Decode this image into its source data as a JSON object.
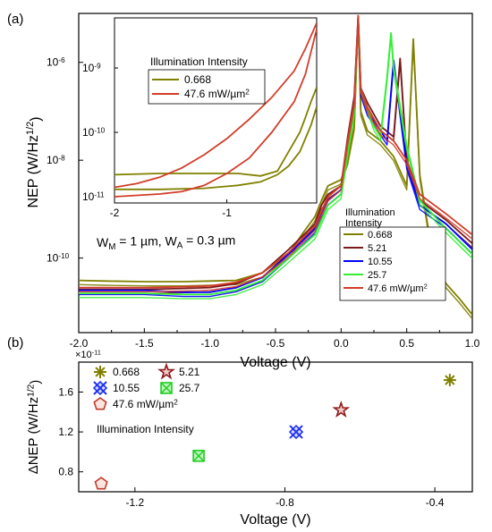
{
  "chart_data": [
    {
      "panel": "(a)",
      "type": "line",
      "xlabel": "Voltage (V)",
      "ylabel": "NEP (W/Hz",
      "ylabel_sup": "1/2",
      "ylabel_close": ")",
      "yscale": "log",
      "xlim": [
        -2.0,
        1.0
      ],
      "ylim": [
        3e-12,
        1e-05
      ],
      "xticks": [
        {
          "v": -2.0,
          "label": "-2.0"
        },
        {
          "v": -1.5,
          "label": "-1.5"
        },
        {
          "v": -1.0,
          "label": "-1.0"
        },
        {
          "v": -0.5,
          "label": "-0.5"
        },
        {
          "v": 0.0,
          "label": "0.0"
        },
        {
          "v": 0.5,
          "label": "0.5"
        },
        {
          "v": 1.0,
          "label": "1.0"
        }
      ],
      "yticks": [
        {
          "v": 1e-10,
          "label": "10",
          "sup": "-10"
        },
        {
          "v": 1e-08,
          "label": "10",
          "sup": "-8"
        },
        {
          "v": 1e-06,
          "label": "10",
          "sup": "-6"
        }
      ],
      "annotation": "W",
      "annotation_parts": [
        "W",
        "M",
        " = 1 µm, W",
        "A",
        " = 0.3 µm"
      ],
      "legend": {
        "title": [
          "Illumination",
          "Intensity"
        ],
        "entries": [
          "0.668",
          "5.21",
          "10.55",
          "25.7",
          "47.6 mW/µm"
        ],
        "last_sup": "2",
        "position": "bottom-right"
      },
      "series": [
        {
          "name": "0.668",
          "color": "#808000",
          "x": [
            -2.0,
            -1.8,
            -1.5,
            -1.2,
            -1.0,
            -0.8,
            -0.6,
            -0.4,
            -0.3,
            -0.2,
            -0.15,
            -0.1,
            0.0,
            0.05,
            0.1,
            0.13,
            0.15,
            0.2,
            0.3,
            0.4,
            0.5,
            0.55,
            0.6,
            0.7,
            0.8,
            0.9,
            1.0
          ],
          "y": [
            3.5e-11,
            3.4e-11,
            3.3e-11,
            3.3e-11,
            3.4e-11,
            3.5e-11,
            5e-11,
            1.2e-10,
            3e-10,
            7e-10,
            1.5e-09,
            3e-09,
            4e-09,
            1e-08,
            5e-08,
            8e-06,
            1e-07,
            4e-08,
            2.5e-08,
            1.2e-08,
            3e-09,
            3e-06,
            5e-09,
            1e-10,
            3e-11,
            1.5e-11,
            7e-12
          ]
        },
        {
          "name": "5.21",
          "color": "#7b1a1a",
          "x": [
            -2.0,
            -1.8,
            -1.5,
            -1.2,
            -1.0,
            -0.8,
            -0.6,
            -0.4,
            -0.2,
            -0.15,
            -0.1,
            0.0,
            0.05,
            0.1,
            0.13,
            0.15,
            0.2,
            0.3,
            0.4,
            0.45,
            0.5,
            0.6,
            0.8,
            1.0
          ],
          "y": [
            2.3e-11,
            2.3e-11,
            2.3e-11,
            2.4e-11,
            2.5e-11,
            3e-11,
            5e-11,
            1.5e-10,
            5e-10,
            1.2e-09,
            2e-09,
            3e-09,
            3e-08,
            2e-07,
            9e-06,
            3e-07,
            1.5e-07,
            5e-08,
            3e-08,
            1.2e-06,
            1e-08,
            1.5e-09,
            6e-10,
            2e-10
          ]
        },
        {
          "name": "10.55",
          "color": "#0000ff",
          "x": [
            -2.0,
            -1.8,
            -1.5,
            -1.2,
            -1.0,
            -0.8,
            -0.6,
            -0.4,
            -0.2,
            -0.15,
            -0.1,
            0.0,
            0.05,
            0.1,
            0.13,
            0.15,
            0.2,
            0.3,
            0.35,
            0.4,
            0.5,
            0.6,
            0.8,
            1.0
          ],
          "y": [
            2.2e-11,
            2.2e-11,
            2.2e-11,
            2e-11,
            2e-11,
            2.5e-11,
            4e-11,
            1.2e-10,
            4e-10,
            8e-10,
            1.5e-09,
            2.5e-09,
            2e-08,
            1.5e-07,
            8e-06,
            2.5e-07,
            1e-07,
            4e-08,
            2.5e-08,
            1.1e-06,
            8e-09,
            1.2e-09,
            5e-10,
            1.5e-10
          ]
        },
        {
          "name": "25.7",
          "color": "#33ee33",
          "x": [
            -2.0,
            -1.8,
            -1.5,
            -1.2,
            -1.0,
            -0.8,
            -0.6,
            -0.4,
            -0.2,
            -0.15,
            -0.1,
            0.0,
            0.05,
            0.1,
            0.13,
            0.15,
            0.2,
            0.25,
            0.3,
            0.35,
            0.38,
            0.4,
            0.5,
            0.6,
            0.8,
            1.0
          ],
          "y": [
            1.9e-11,
            1.9e-11,
            1.9e-11,
            1.8e-11,
            1.8e-11,
            2.2e-11,
            3.5e-11,
            1e-10,
            3e-10,
            6e-10,
            1.2e-09,
            2e-09,
            1.5e-08,
            1e-07,
            8e-06,
            3e-07,
            1.2e-07,
            5e-08,
            3e-08,
            5e-07,
            4e-06,
            8e-07,
            2e-08,
            1.5e-09,
            4e-10,
            1.2e-10
          ]
        },
        {
          "name": "47.6 mW/µm",
          "color": "#d23d2a",
          "x": [
            -2.0,
            -1.8,
            -1.5,
            -1.2,
            -1.0,
            -0.8,
            -0.6,
            -0.4,
            -0.2,
            -0.15,
            -0.1,
            0.0,
            0.05,
            0.1,
            0.13,
            0.15,
            0.2,
            0.3,
            0.4,
            0.5,
            0.6,
            0.8,
            1.0
          ],
          "y": [
            2.5e-11,
            2.5e-11,
            2.5e-11,
            2.6e-11,
            2.7e-11,
            3.2e-11,
            5e-11,
            1.3e-10,
            4.5e-10,
            9e-10,
            1.8e-09,
            3e-09,
            2.5e-08,
            1.5e-07,
            9e-06,
            3e-07,
            1.2e-07,
            4e-08,
            2.5e-08,
            1e-08,
            2e-09,
            8e-10,
            3e-10
          ]
        }
      ]
    },
    {
      "panel": "inset",
      "type": "line",
      "yscale": "log",
      "xlim": [
        -2.0,
        -0.2
      ],
      "ylim": [
        8e-12,
        6e-09
      ],
      "xticks": [
        {
          "v": -2,
          "label": "-2"
        },
        {
          "v": -1,
          "label": "-1"
        }
      ],
      "yticks": [
        {
          "v": 1e-11,
          "label": "10",
          "sup": "-11"
        },
        {
          "v": 1e-10,
          "label": "10",
          "sup": "-10"
        },
        {
          "v": 1e-09,
          "label": "10",
          "sup": "-9"
        }
      ],
      "legend": {
        "title": "Illumination Intensity",
        "entries": [
          "0.668",
          "47.6 mW/µm"
        ],
        "last_sup": "2",
        "position": "top-left"
      },
      "series": [
        {
          "name": "0.668",
          "color": "#808000",
          "x_lower": [
            -2.0,
            -1.6,
            -1.2,
            -0.9,
            -0.7,
            -0.55,
            -0.45,
            -0.35,
            -0.3,
            -0.25,
            -0.2
          ],
          "y_lower": [
            1.3e-11,
            1.3e-11,
            1.35e-11,
            1.5e-11,
            1.7e-11,
            2.2e-11,
            3e-11,
            5e-11,
            8e-11,
            1.3e-10,
            2.5e-10
          ],
          "x_upper": [
            -2.0,
            -1.6,
            -1.2,
            -0.9,
            -0.7,
            -0.55,
            -0.45,
            -0.35,
            -0.3,
            -0.25,
            -0.2
          ],
          "y_upper": [
            2.2e-11,
            2.3e-11,
            2.3e-11,
            2.3e-11,
            2.1e-11,
            2.5e-11,
            5e-11,
            1e-10,
            1.7e-10,
            3e-10,
            5e-10
          ]
        },
        {
          "name": "47.6 mW/µm",
          "color": "#d23d2a",
          "x_lower": [
            -2.0,
            -1.8,
            -1.6,
            -1.4,
            -1.2,
            -1.0,
            -0.8,
            -0.6,
            -0.4,
            -0.3,
            -0.2
          ],
          "y_lower": [
            1e-11,
            1.05e-11,
            1.1e-11,
            1.2e-11,
            1.5e-11,
            2.3e-11,
            4e-11,
            1e-10,
            3e-10,
            8e-10,
            4e-09
          ],
          "x_upper": [
            -2.0,
            -1.8,
            -1.6,
            -1.4,
            -1.2,
            -1.0,
            -0.8,
            -0.6,
            -0.4,
            -0.3,
            -0.2
          ],
          "y_upper": [
            1.4e-11,
            1.6e-11,
            2e-11,
            2.8e-11,
            4.5e-11,
            8e-11,
            1.6e-10,
            3.5e-10,
            9e-10,
            2e-09,
            5e-09
          ]
        }
      ]
    },
    {
      "panel": "(b)",
      "type": "scatter",
      "xlabel": "Voltage (V)",
      "ylabel": "ΔNEP (W/Hz",
      "ylabel_sup": "1/2",
      "ylabel_close": ")",
      "multiplier": "×10",
      "multiplier_sup": "-11",
      "xlim": [
        -1.35,
        -0.3
      ],
      "ylim": [
        0.6,
        1.9
      ],
      "xticks": [
        {
          "v": -1.2,
          "label": "-1.2"
        },
        {
          "v": -0.8,
          "label": "-0.8"
        },
        {
          "v": -0.4,
          "label": "-0.4"
        }
      ],
      "yticks": [
        {
          "v": 0.8,
          "label": "0.8"
        },
        {
          "v": 1.2,
          "label": "1.2"
        },
        {
          "v": 1.6,
          "label": "1.6"
        }
      ],
      "legend": {
        "title": "Illumination Intensity",
        "entries": [
          "0.668",
          "5.21",
          "10.55",
          "25.7",
          "47.6 mW/µm"
        ],
        "last_sup": "2",
        "position": "top-left"
      },
      "points": [
        {
          "name": "0.668",
          "x": -0.36,
          "y": 1.72,
          "marker": "asterisk",
          "color": "#808000"
        },
        {
          "name": "5.21",
          "x": -0.65,
          "y": 1.42,
          "marker": "star",
          "color": "#8b1a1a"
        },
        {
          "name": "10.55",
          "x": -0.77,
          "y": 1.2,
          "marker": "x-diamond",
          "color": "#2233ee"
        },
        {
          "name": "25.7",
          "x": -1.03,
          "y": 0.96,
          "marker": "x-square",
          "color": "#22cc22"
        },
        {
          "name": "47.6 mW/µm",
          "x": -1.29,
          "y": 0.68,
          "marker": "pentagon",
          "color": "#c0392b"
        }
      ]
    }
  ]
}
